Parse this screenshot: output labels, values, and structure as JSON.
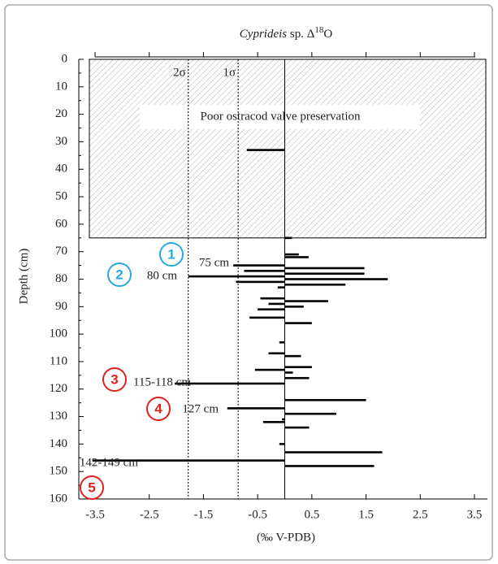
{
  "chart_data": {
    "type": "bar",
    "orientation": "horizontal",
    "title": {
      "italic": "Cyprideis",
      "rest": " sp. Δ",
      "sup": "18",
      "end": "O"
    },
    "xlabel": "(‰ V-PDB)",
    "ylabel": "Depth (cm)",
    "xlim": [
      -3.8,
      3.74
    ],
    "ylim": [
      0,
      160
    ],
    "xticks": [
      -3.5,
      -2.5,
      -1.5,
      -0.5,
      0.5,
      1.5,
      2.5,
      3.5
    ],
    "yticks": [
      0,
      10,
      20,
      30,
      40,
      50,
      60,
      70,
      80,
      90,
      100,
      110,
      120,
      130,
      140,
      150,
      160
    ],
    "color": "#000000",
    "mean_line": 0,
    "sigma_lines": [
      {
        "label": "2σ",
        "value": -1.78
      },
      {
        "label": "1σ",
        "value": -0.86
      }
    ],
    "shaded_region": {
      "ylim": [
        0,
        65
      ],
      "label": "Poor ostracod valve preservation"
    },
    "y": [
      33,
      65,
      71,
      72,
      75,
      76,
      77,
      78,
      79,
      80,
      81,
      82,
      83,
      87,
      88,
      89,
      90,
      91,
      94,
      96,
      103,
      107,
      108,
      112,
      113,
      114,
      116,
      118,
      124,
      127,
      129,
      131,
      132,
      134,
      140,
      143,
      146,
      148
    ],
    "values": [
      -0.7,
      0.13,
      0.26,
      0.44,
      -0.95,
      1.47,
      -0.75,
      1.47,
      -1.78,
      1.9,
      -0.9,
      1.12,
      -0.13,
      -0.45,
      0.8,
      -0.3,
      0.35,
      -0.5,
      -0.65,
      0.5,
      -0.1,
      -0.3,
      0.3,
      0.5,
      -0.55,
      0.15,
      0.45,
      -2.03,
      1.5,
      -1.06,
      0.95,
      -0.05,
      -0.4,
      0.45,
      -0.1,
      1.8,
      -3.55,
      1.65
    ],
    "annotations": [
      "75 cm",
      "80 cm",
      "115-118 cm",
      "127 cm",
      "142-149 cm"
    ],
    "markers": [
      {
        "label": "1",
        "color": "#29a9e0"
      },
      {
        "label": "2",
        "color": "#29a9e0"
      },
      {
        "label": "3",
        "color": "#e0201c"
      },
      {
        "label": "4",
        "color": "#e0201c"
      },
      {
        "label": "5",
        "color": "#e0201c"
      }
    ]
  }
}
